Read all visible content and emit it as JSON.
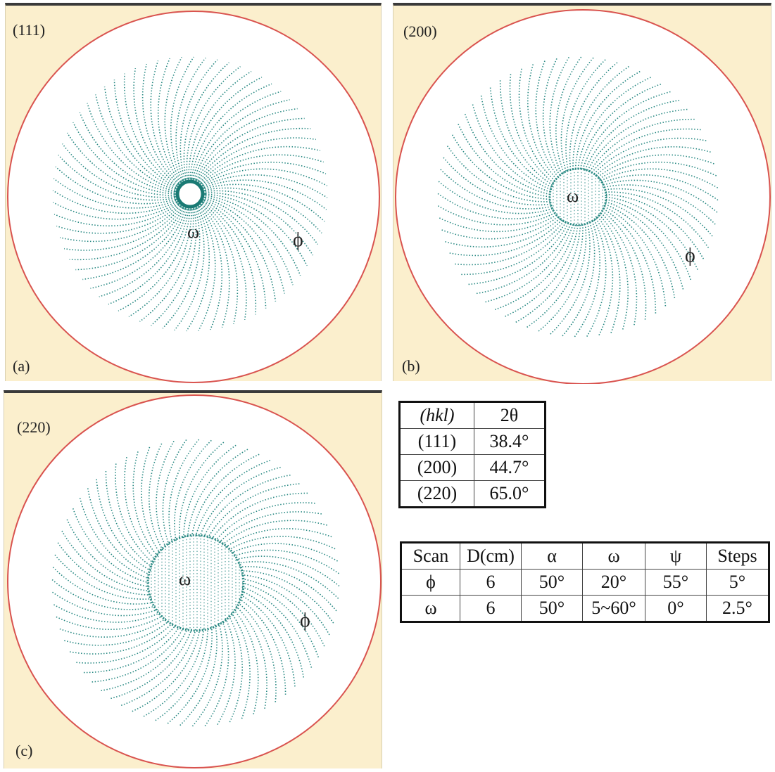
{
  "panels": [
    {
      "id": "a",
      "hkl": "(111)",
      "letter": "(a)",
      "inner_ring": "small",
      "phi_label": "ϕ",
      "omega_label": "ω"
    },
    {
      "id": "b",
      "hkl": "(200)",
      "letter": "(b)",
      "inner_ring": "medium",
      "phi_label": "ϕ",
      "omega_label": "ω"
    },
    {
      "id": "c",
      "hkl": "(220)",
      "letter": "(c)",
      "inner_ring": "large",
      "phi_label": "ϕ",
      "omega_label": "ω"
    }
  ],
  "colors": {
    "outer_circle": "#d9534f",
    "spokes": "#2a8a84",
    "panel_bg": "#fbefcd"
  },
  "table_hkl": {
    "header": [
      "(hkl)",
      "2θ"
    ],
    "rows": [
      [
        "(111)",
        "38.4°"
      ],
      [
        "(200)",
        "44.7°"
      ],
      [
        "(220)",
        "65.0°"
      ]
    ]
  },
  "table_scan": {
    "header": [
      "Scan",
      "D(cm)",
      "α",
      "ω",
      "ψ",
      "Steps"
    ],
    "rows": [
      [
        "ϕ",
        "6",
        "50°",
        "20°",
        "55°",
        "5°"
      ],
      [
        "ω",
        "6",
        "50°",
        "5~60°",
        "0°",
        "2.5°"
      ]
    ]
  }
}
